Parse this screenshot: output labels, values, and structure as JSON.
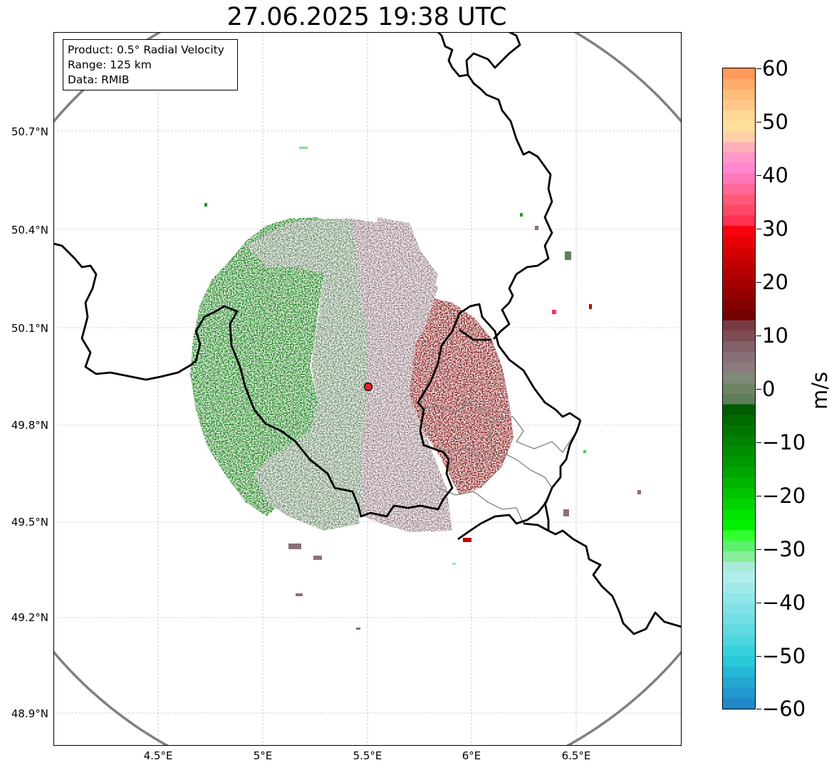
{
  "title": "27.06.2025 19:38 UTC",
  "info": {
    "product": "Product: 0.5° Radial Velocity",
    "range": "Range: 125 km",
    "data": "Data: RMIB"
  },
  "axes": {
    "lat_ticks": [
      "50.7°N",
      "50.4°N",
      "50.1°N",
      "49.8°N",
      "49.5°N",
      "49.2°N",
      "48.9°N"
    ],
    "lon_ticks": [
      "4.5°E",
      "5°E",
      "5.5°E",
      "6°E",
      "6.5°E"
    ]
  },
  "colorbar": {
    "unit": "m/s",
    "tick_labels": [
      "60",
      "50",
      "40",
      "30",
      "20",
      "10",
      "0",
      "−10",
      "−20",
      "−30",
      "−40",
      "−50",
      "−60"
    ],
    "min": -60,
    "max": 60
  },
  "radar_site": {
    "lat": 49.91,
    "lon": 5.5,
    "marker_color": "#e8202a"
  },
  "colors": {
    "range_ring": "#808080",
    "border": "#000000",
    "province": "#808080",
    "outbound_dark_red": "#7a0000",
    "inbound_green": "#007a00",
    "near_zero_green_gray": "#5f7f5c",
    "near_zero_mauve": "#8c6f78"
  }
}
